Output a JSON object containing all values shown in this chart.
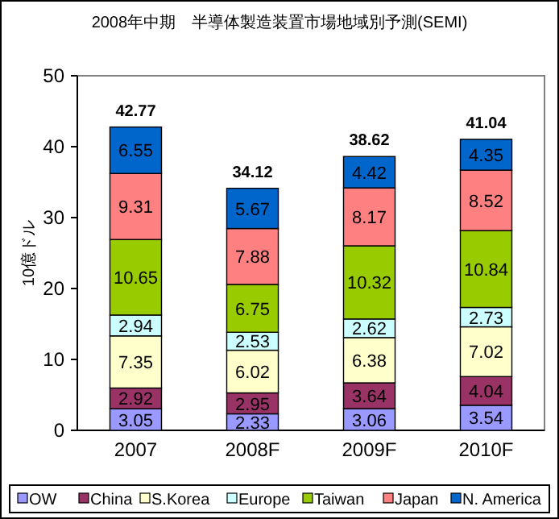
{
  "chart_data": {
    "type": "bar",
    "stacked": true,
    "title": "2008年中期　半導体製造装置市場地域別予測(SEMI)",
    "ylabel": "10億ドル",
    "categories": [
      "2007",
      "2008F",
      "2009F",
      "2010F"
    ],
    "series": [
      {
        "name": "OW",
        "color": "#9999ff",
        "values": [
          3.05,
          2.33,
          3.06,
          3.54
        ]
      },
      {
        "name": "China",
        "color": "#993366",
        "values": [
          2.92,
          2.95,
          3.64,
          4.04
        ]
      },
      {
        "name": "S.Korea",
        "color": "#ffffcc",
        "values": [
          7.35,
          6.02,
          6.38,
          7.02
        ]
      },
      {
        "name": "Europe",
        "color": "#ccffff",
        "values": [
          2.94,
          2.53,
          2.62,
          2.73
        ]
      },
      {
        "name": "Taiwan",
        "color": "#99cc00",
        "values": [
          10.65,
          6.75,
          10.32,
          10.84
        ]
      },
      {
        "name": "Japan",
        "color": "#ff8080",
        "values": [
          9.31,
          7.88,
          8.17,
          8.52
        ]
      },
      {
        "name": "N. America",
        "color": "#0066cc",
        "values": [
          6.55,
          5.67,
          4.42,
          4.35
        ]
      }
    ],
    "totals": [
      "42.77",
      "34.12",
      "38.62",
      "41.04"
    ],
    "data_labels": true,
    "ylim": [
      0,
      50
    ],
    "yticks": [
      0,
      10,
      20,
      30,
      40,
      50
    ],
    "grid": false,
    "legend": "bottom"
  }
}
